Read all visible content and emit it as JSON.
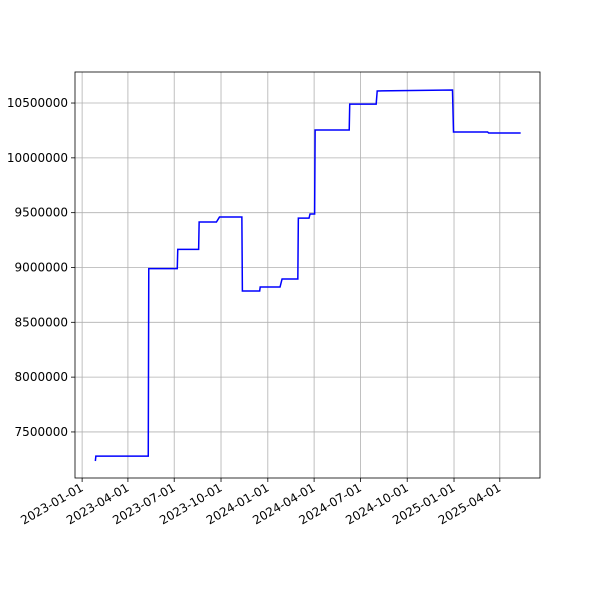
{
  "chart_data": {
    "type": "line",
    "color": "#0000ff",
    "grid": true,
    "x": [
      "2023-01-27",
      "2023-01-28",
      "2023-05-11",
      "2023-05-12",
      "2023-07-07",
      "2023-07-08",
      "2023-08-18",
      "2023-08-19",
      "2023-09-22",
      "2023-09-28",
      "2023-11-11",
      "2023-11-12",
      "2023-12-16",
      "2023-12-17",
      "2024-01-25",
      "2024-01-29",
      "2024-02-29",
      "2024-03-01",
      "2024-03-22",
      "2024-03-24",
      "2024-04-02",
      "2024-04-03",
      "2024-06-09",
      "2024-06-10",
      "2024-08-01",
      "2024-08-03",
      "2024-12-29",
      "2024-12-31",
      "2025-03-08",
      "2025-03-10",
      "2025-05-12"
    ],
    "values": [
      7235000,
      7280000,
      7280000,
      8990000,
      8990000,
      9165000,
      9165000,
      9415000,
      9415000,
      9460000,
      9460000,
      8786000,
      8786000,
      8822000,
      8822000,
      8895000,
      8895000,
      9450000,
      9450000,
      9488000,
      9488000,
      10254000,
      10254000,
      10490000,
      10490000,
      10610000,
      10619000,
      10236000,
      10236000,
      10227000,
      10227000
    ],
    "xlim": [
      "2022-12-18",
      "2025-06-19"
    ],
    "xticks": [
      "2023-01-01",
      "2023-04-01",
      "2023-07-01",
      "2023-10-01",
      "2024-01-01",
      "2024-04-01",
      "2024-07-01",
      "2024-10-01",
      "2025-01-01",
      "2025-04-01"
    ],
    "ylim": [
      7080000,
      10783000
    ],
    "yticks": [
      7500000,
      8000000,
      8500000,
      9000000,
      9500000,
      10000000,
      10500000
    ]
  }
}
